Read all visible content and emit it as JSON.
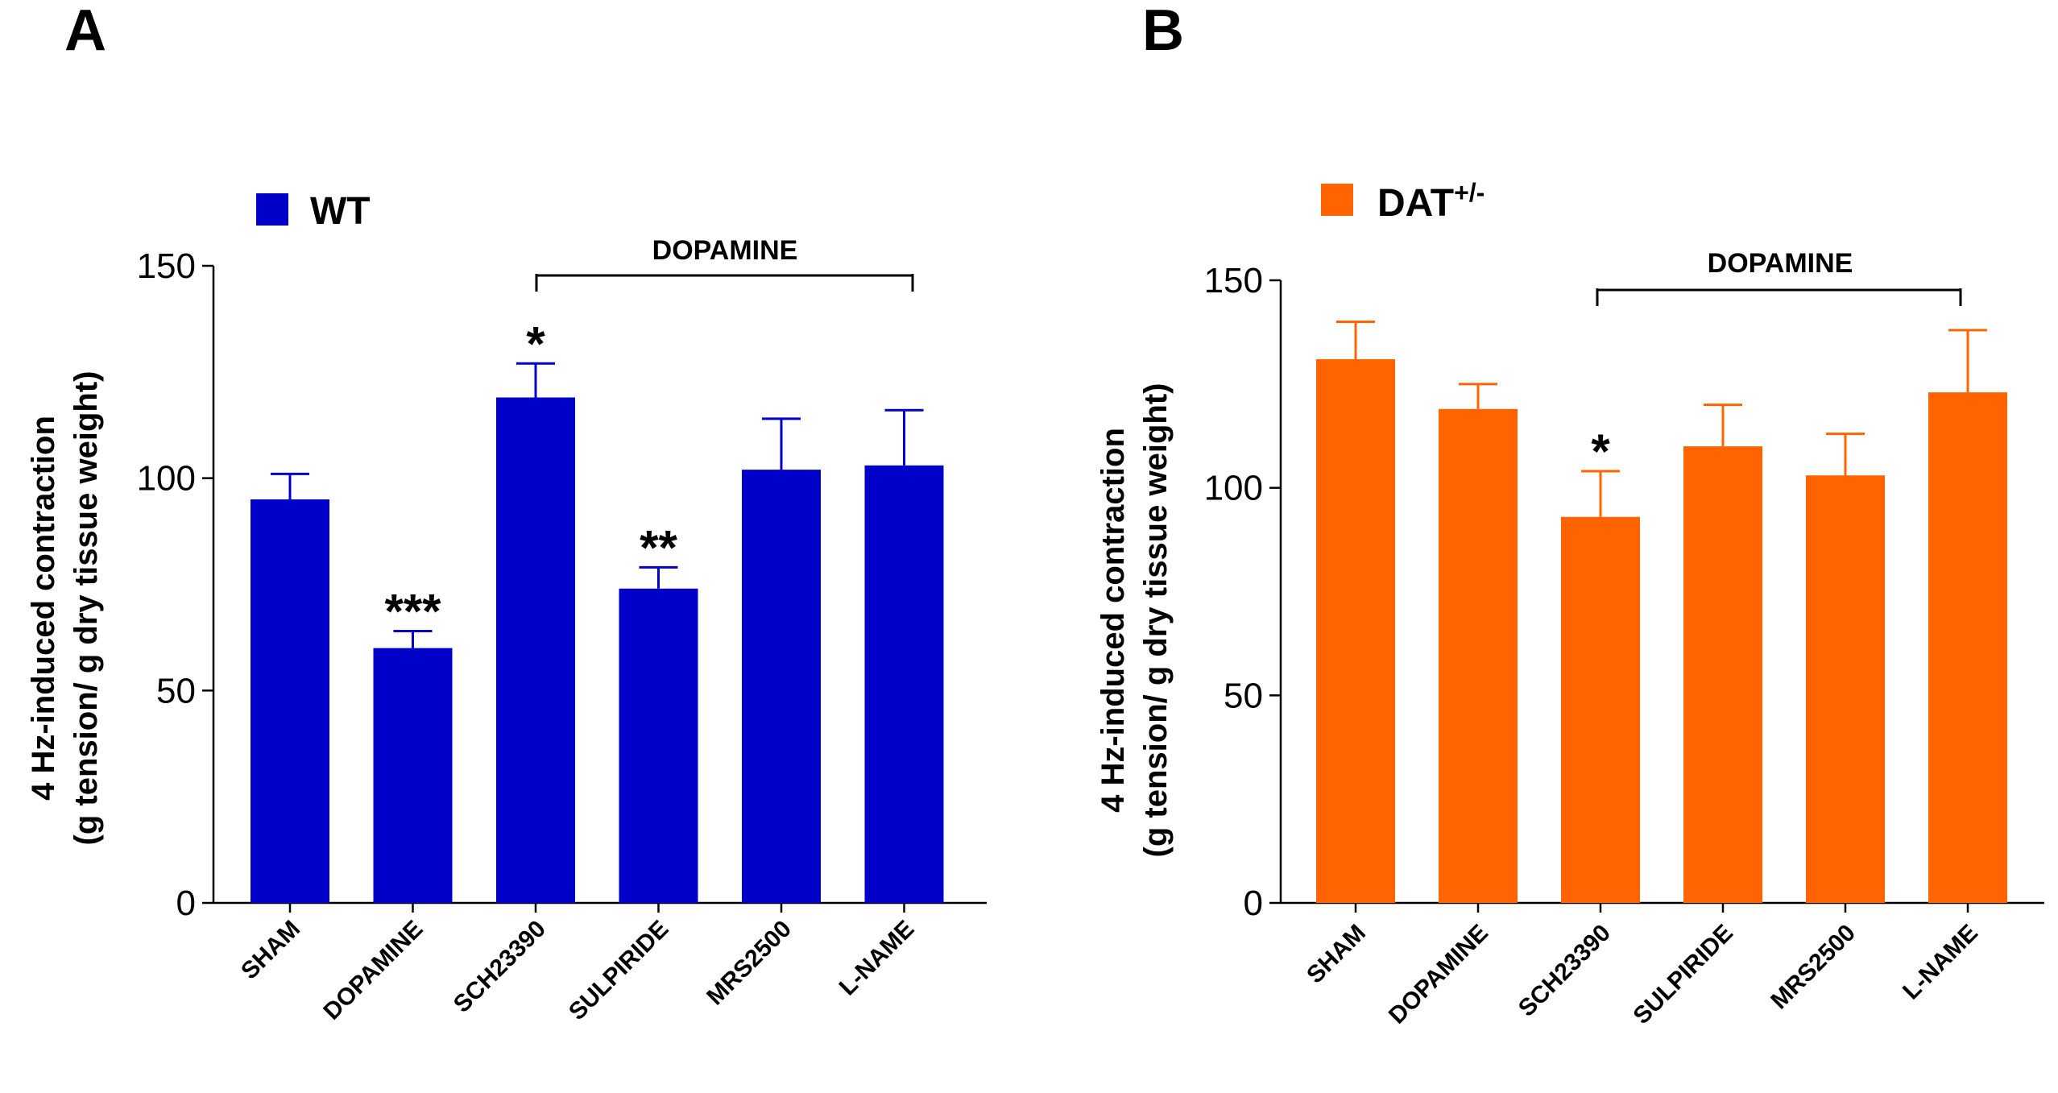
{
  "chart_data": [
    {
      "type": "bar",
      "panel": "A",
      "legend": "WT",
      "legend_sup": "",
      "color": "#0000c8",
      "bracket_label": "DOPAMINE",
      "ylabel_line1": "4 Hz-induced contraction",
      "ylabel_line2": "(g tension/ g dry tissue weight)",
      "ylim": [
        0,
        150
      ],
      "yticks": [
        "0",
        "50",
        "100",
        "150"
      ],
      "categories": [
        "SHAM",
        "DOPAMINE",
        "SCH23390",
        "SULPIRIDE",
        "MRS2500",
        "L-NAME"
      ],
      "values": [
        95,
        60,
        119,
        74,
        102,
        103
      ],
      "errors": [
        6,
        4,
        8,
        5,
        12,
        13
      ],
      "significance": [
        "",
        "***",
        "*",
        "**",
        "",
        ""
      ]
    },
    {
      "type": "bar",
      "panel": "B",
      "legend": "DAT",
      "legend_sup": "+/-",
      "color": "#ff6400",
      "bracket_label": "DOPAMINE",
      "ylabel_line1": "4 Hz-induced contraction",
      "ylabel_line2": "(g tension/ g dry tissue weight)",
      "ylim": [
        0,
        150
      ],
      "yticks": [
        "0",
        "50",
        "100",
        "150"
      ],
      "categories": [
        "SHAM",
        "DOPAMINE",
        "SCH23390",
        "SULPIRIDE",
        "MRS2500",
        "L-NAME"
      ],
      "values": [
        131,
        119,
        93,
        110,
        103,
        123
      ],
      "errors": [
        9,
        6,
        11,
        10,
        10,
        15
      ],
      "significance": [
        "",
        "",
        "*",
        "",
        "",
        ""
      ]
    }
  ]
}
